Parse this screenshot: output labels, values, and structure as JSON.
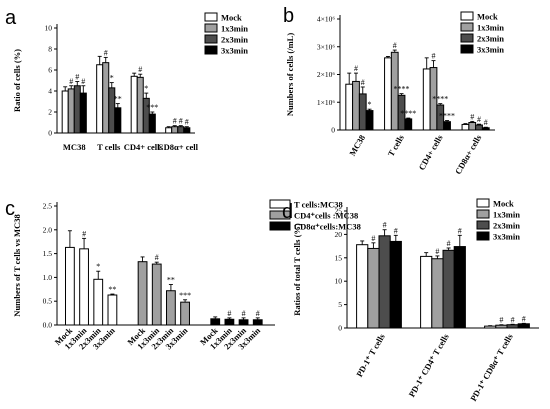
{
  "chart_data": [
    {
      "panel": "a",
      "type": "bar",
      "ylabel": "Ratio of cells (%)",
      "ylim": [
        0,
        10
      ],
      "yticks": [
        "0",
        "2",
        "4",
        "6",
        "8",
        "10"
      ],
      "categories": [
        "MC38",
        "T cells",
        "CD4+ cells",
        "CD8α+ cell"
      ],
      "legend_position": "top-right",
      "series": [
        {
          "name": "Mock",
          "color": "#ffffff",
          "values": [
            4.0,
            6.5,
            5.4,
            0.5
          ],
          "errors": [
            0.4,
            0.8,
            0.3,
            0.1
          ],
          "annotations": [
            "",
            "",
            "",
            ""
          ]
        },
        {
          "name": "1x3min",
          "color": "#a0a0a0",
          "values": [
            4.2,
            6.7,
            5.3,
            0.6
          ],
          "errors": [
            0.3,
            0.5,
            0.3,
            0.1
          ],
          "annotations": [
            "#",
            "#",
            "#",
            "#"
          ]
        },
        {
          "name": "2x3min",
          "color": "#4d4d4d",
          "values": [
            4.5,
            4.3,
            3.3,
            0.6
          ],
          "errors": [
            0.4,
            0.5,
            0.5,
            0.1
          ],
          "annotations": [
            "#",
            "*",
            "*",
            "#"
          ]
        },
        {
          "name": "3x3min",
          "color": "#000000",
          "values": [
            3.8,
            2.4,
            1.8,
            0.5
          ],
          "errors": [
            0.7,
            0.4,
            0.2,
            0.1
          ],
          "annotations": [
            "#",
            "**",
            "***",
            "#"
          ]
        }
      ]
    },
    {
      "panel": "b",
      "type": "bar",
      "ylabel": "Numbers of cells (/mL)",
      "ylim": [
        0,
        4000000
      ],
      "yticks": [
        "0",
        "1×10⁶",
        "2×10⁶",
        "3×10⁶",
        "4×10⁶"
      ],
      "categories": [
        "MC38",
        "T cells",
        "CD4+ cells",
        "CD8α+ cells"
      ],
      "legend_position": "top-right",
      "series": [
        {
          "name": "Mock",
          "color": "#ffffff",
          "values": [
            1650000,
            2600000,
            2200000,
            200000
          ],
          "errors": [
            400000,
            50000,
            400000,
            30000
          ],
          "annotations": [
            "",
            "",
            "",
            ""
          ]
        },
        {
          "name": "1x3min",
          "color": "#a0a0a0",
          "values": [
            1750000,
            2800000,
            2250000,
            270000
          ],
          "errors": [
            300000,
            80000,
            250000,
            40000
          ],
          "annotations": [
            "#",
            "#",
            "#",
            "#"
          ]
        },
        {
          "name": "2x3min",
          "color": "#4d4d4d",
          "values": [
            1300000,
            1250000,
            900000,
            180000
          ],
          "errors": [
            250000,
            60000,
            50000,
            30000
          ],
          "annotations": [
            "#",
            "****",
            "****",
            "#"
          ]
        },
        {
          "name": "3x3min",
          "color": "#000000",
          "values": [
            700000,
            400000,
            300000,
            80000
          ],
          "errors": [
            50000,
            30000,
            40000,
            20000
          ],
          "annotations": [
            "*",
            "****",
            "****",
            "#"
          ]
        }
      ]
    },
    {
      "panel": "c",
      "type": "bar",
      "ylabel": "Numbers of T cells vs MC38",
      "ylim": [
        0,
        2.5
      ],
      "yticks": [
        "0.0",
        "0.5",
        "1.0",
        "1.5",
        "2.0",
        "2.5"
      ],
      "legend_position": "top-right",
      "groups": [
        {
          "name": "T cells:MC38",
          "color": "#ffffff",
          "labels": [
            "Mock",
            "1x3min",
            "2x3min",
            "3x3min"
          ],
          "values": [
            1.63,
            1.6,
            0.96,
            0.63
          ],
          "errors": [
            0.35,
            0.22,
            0.17,
            0.02
          ],
          "annotations": [
            "",
            "#",
            "*",
            "**"
          ]
        },
        {
          "name": "CD4⁺cells :MC38",
          "color": "#a0a0a0",
          "labels": [
            "Mock",
            "1x3min",
            "2x3min",
            "3x3min"
          ],
          "values": [
            1.33,
            1.28,
            0.72,
            0.48
          ],
          "errors": [
            0.1,
            0.04,
            0.13,
            0.05
          ],
          "annotations": [
            "",
            "#",
            "**",
            "***"
          ]
        },
        {
          "name": "CD8α⁺cells:MC38",
          "color": "#000000",
          "labels": [
            "Mock",
            "1x3min",
            "2x3min",
            "3x3min"
          ],
          "values": [
            0.13,
            0.12,
            0.11,
            0.11
          ],
          "errors": [
            0.04,
            0.03,
            0.04,
            0.04
          ],
          "annotations": [
            "",
            "#",
            "#",
            "#"
          ]
        }
      ]
    },
    {
      "panel": "d",
      "type": "bar",
      "ylabel": "Ratios of total T cells (%)",
      "ylim": [
        0,
        25
      ],
      "yticks": [
        "0",
        "5",
        "10",
        "15",
        "20",
        "25"
      ],
      "categories": [
        "PD-1⁺ T cells",
        "PD-1⁺ CD4⁺ T cells",
        "PD-1⁺ CD8α⁺ T cells"
      ],
      "legend_position": "top-right",
      "series": [
        {
          "name": "Mock",
          "color": "#ffffff",
          "values": [
            17.8,
            15.3,
            0.4
          ],
          "errors": [
            0.8,
            0.8,
            0.1
          ],
          "annotations": [
            "",
            "",
            ""
          ]
        },
        {
          "name": "1x3min",
          "color": "#a0a0a0",
          "values": [
            17.0,
            14.8,
            0.6
          ],
          "errors": [
            1.2,
            0.6,
            0.1
          ],
          "annotations": [
            "#",
            "#",
            "#"
          ]
        },
        {
          "name": "2x3min",
          "color": "#4d4d4d",
          "values": [
            19.7,
            16.6,
            0.7
          ],
          "errors": [
            1.3,
            0.5,
            0.1
          ],
          "annotations": [
            "#",
            "#",
            "#"
          ]
        },
        {
          "name": "3x3min",
          "color": "#000000",
          "values": [
            18.5,
            17.4,
            0.9
          ],
          "errors": [
            1.3,
            2.4,
            0.1
          ],
          "annotations": [
            "#",
            "#",
            "#"
          ]
        }
      ]
    }
  ],
  "panel_labels": [
    "a",
    "b",
    "c",
    "d"
  ]
}
